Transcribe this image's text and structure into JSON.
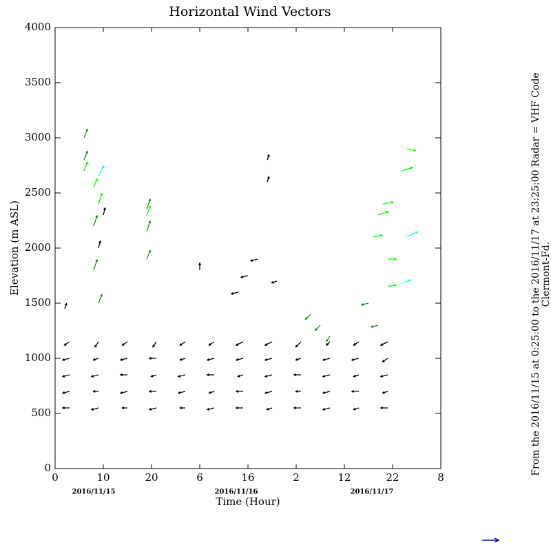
{
  "chart_data": {
    "type": "quiver",
    "title": "Horizontal Wind Vectors",
    "xlabel": "Time (Hour)",
    "ylabel": "Elevation (m ASL)",
    "date_labels": [
      "2016/11/15",
      "2016/11/16",
      "2016/11/17"
    ],
    "side_text": [
      "From the 2016/11/15 at  0:25:00 to the 2016/11/17 at 23:25:00 Radar = VHF Code",
      "Clermont-Fd."
    ],
    "xlim": [
      0,
      80
    ],
    "xticks": [
      0,
      10,
      20,
      {
        "value": 30,
        "label": "6"
      },
      {
        "value": 40,
        "label": "16"
      },
      {
        "value": 50,
        "label": "2"
      },
      {
        "value": 60,
        "label": "12"
      },
      {
        "value": 70,
        "label": "22"
      },
      {
        "value": 80,
        "label": "8"
      }
    ],
    "ylim": [
      0,
      4000
    ],
    "yticks": [
      0,
      500,
      1000,
      1500,
      2000,
      2500,
      3000,
      3500,
      4000
    ],
    "series": [
      {
        "color": "#000000",
        "x": [
          3,
          9,
          15,
          21,
          27,
          33,
          39,
          45,
          51,
          57,
          63,
          69,
          3,
          9,
          15,
          21,
          27,
          33,
          39,
          45,
          51,
          57,
          63,
          69,
          3,
          9,
          15,
          21,
          27,
          33,
          39,
          45,
          51,
          57,
          63,
          69,
          3,
          9,
          15,
          21,
          27,
          33,
          39,
          45,
          51,
          57,
          63,
          69,
          3,
          9,
          15,
          21,
          27,
          33,
          39,
          45,
          51,
          57,
          63,
          69,
          38,
          40,
          42,
          44,
          44,
          46,
          9,
          10,
          30,
          2
        ],
        "y": [
          550,
          550,
          550,
          550,
          550,
          550,
          550,
          550,
          550,
          550,
          550,
          550,
          700,
          700,
          700,
          700,
          700,
          700,
          700,
          700,
          700,
          700,
          700,
          700,
          850,
          850,
          850,
          850,
          850,
          850,
          850,
          850,
          850,
          850,
          850,
          850,
          1000,
          1000,
          1000,
          1000,
          1000,
          1000,
          1000,
          1000,
          1000,
          1000,
          1000,
          1000,
          1150,
          1150,
          1150,
          1150,
          1150,
          1150,
          1150,
          1150,
          1150,
          1150,
          1150,
          1150,
          1600,
          1750,
          1900,
          2600,
          2800,
          1700,
          2000,
          2300,
          1800,
          1450
        ],
        "u": [
          -4,
          -4,
          -3,
          -4,
          -3,
          -4,
          -4,
          -3,
          -4,
          -4,
          -3,
          -4,
          -4,
          -3,
          -4,
          -4,
          -4,
          -3,
          -4,
          -4,
          -3,
          -4,
          -4,
          -3,
          -4,
          -4,
          -4,
          -3,
          -4,
          -4,
          -3,
          -4,
          -4,
          -4,
          -3,
          -4,
          -4,
          -3,
          -4,
          -4,
          -3,
          -4,
          -4,
          -4,
          -3,
          -4,
          -4,
          -3,
          -3,
          -2,
          -3,
          -2,
          -3,
          -3,
          -4,
          -4,
          -3,
          -2,
          -3,
          -4,
          -4,
          -4,
          -4,
          1,
          1,
          -3,
          1,
          1,
          0,
          1
        ],
        "v": [
          0,
          -1,
          0,
          -1,
          0,
          -1,
          0,
          -1,
          0,
          -1,
          -1,
          0,
          -1,
          0,
          -1,
          0,
          -1,
          -1,
          0,
          -1,
          0,
          -1,
          0,
          -1,
          -1,
          -1,
          0,
          -1,
          -1,
          0,
          -1,
          -1,
          0,
          -1,
          -1,
          -1,
          -1,
          -1,
          -1,
          0,
          -1,
          -1,
          -1,
          -1,
          -1,
          -1,
          -1,
          -2,
          -2,
          -3,
          -2,
          -3,
          -2,
          -2,
          -2,
          -2,
          -3,
          -2,
          -2,
          -2,
          -1,
          -1,
          -1,
          3,
          3,
          -1,
          4,
          4,
          4,
          3
        ]
      },
      {
        "color": "#228b22",
        "x": [
          6,
          6,
          8,
          8,
          9,
          19,
          19,
          19,
          53,
          55,
          57,
          65,
          67
        ],
        "y": [
          3000,
          2800,
          2200,
          1800,
          1500,
          2350,
          2150,
          1900,
          1400,
          1300,
          1200,
          1500,
          1300
        ],
        "u": [
          2,
          2,
          2,
          2,
          2,
          2,
          2,
          2,
          -3,
          -3,
          -2,
          -4,
          -4
        ],
        "v": [
          5,
          5,
          6,
          6,
          5,
          6,
          6,
          5,
          -3,
          -3,
          -3,
          -1,
          -1
        ]
      },
      {
        "color": "#00ff00",
        "x": [
          6,
          8,
          9,
          19,
          66,
          67,
          68,
          69,
          69,
          72,
          73
        ],
        "y": [
          2700,
          2550,
          2400,
          2300,
          2100,
          2300,
          2400,
          1900,
          1650,
          2700,
          2900
        ],
        "u": [
          2,
          2,
          2,
          2,
          5,
          6,
          6,
          5,
          5,
          6,
          5
        ],
        "v": [
          5,
          5,
          6,
          5,
          1,
          2,
          1,
          0,
          1,
          2,
          -1
        ]
      },
      {
        "color": "#00ffff",
        "x": [
          9,
          73,
          72
        ],
        "y": [
          2650,
          2100,
          1680
        ],
        "u": [
          3,
          6,
          5
        ],
        "v": [
          6,
          3,
          2
        ]
      }
    ]
  }
}
